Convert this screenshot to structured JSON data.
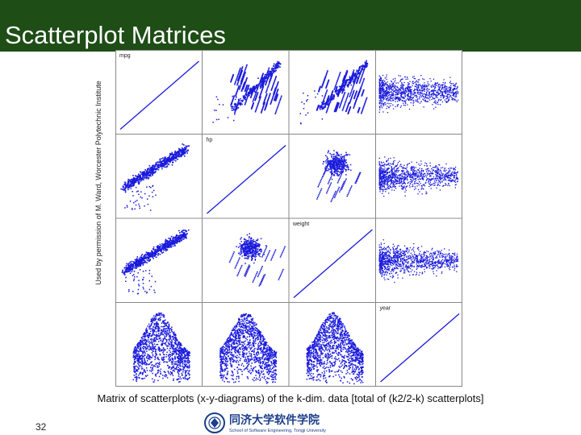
{
  "slide": {
    "title": "Scatterplot Matrices",
    "side_caption": "Used by permission of M. Ward, Worcester Polytechnic Institute",
    "caption": "Matrix of scatterplots (x-y-diagrams) of the k-dim. data [total of (k2/2-k) scatterplots]",
    "page_number": "32"
  },
  "chart_data": {
    "type": "scatter",
    "matrix_size": 4,
    "variables": [
      "mpg",
      "hp",
      "weight",
      "year"
    ],
    "diagonal_labels": [
      "mpg",
      "hp",
      "weight",
      "year"
    ],
    "point_color": "#1a1adc",
    "background": "#ffffff",
    "grid_line_color": "#888888",
    "cells": [
      {
        "row": 1,
        "col": 0,
        "pattern": "dense-bundle"
      },
      {
        "row": 2,
        "col": 0,
        "pattern": "dense-bundle"
      },
      {
        "row": 3,
        "col": 0,
        "pattern": "dense-band"
      },
      {
        "row": 0,
        "col": 1,
        "pattern": "rising-streaks"
      },
      {
        "row": 2,
        "col": 1,
        "pattern": "cluster-scatter"
      },
      {
        "row": 3,
        "col": 1,
        "pattern": "dense-band"
      },
      {
        "row": 0,
        "col": 2,
        "pattern": "rising-streaks"
      },
      {
        "row": 1,
        "col": 2,
        "pattern": "cluster-scatter"
      },
      {
        "row": 3,
        "col": 2,
        "pattern": "dense-band"
      },
      {
        "row": 0,
        "col": 3,
        "pattern": "horizontal-band"
      },
      {
        "row": 1,
        "col": 3,
        "pattern": "horizontal-band"
      },
      {
        "row": 2,
        "col": 3,
        "pattern": "horizontal-band"
      }
    ]
  },
  "logo": {
    "icon": "university-emblem-icon",
    "name_zh": "同济大学软件学院",
    "name_en": "School of Software Engineering, Tongji University",
    "color": "#1b3e8a"
  }
}
